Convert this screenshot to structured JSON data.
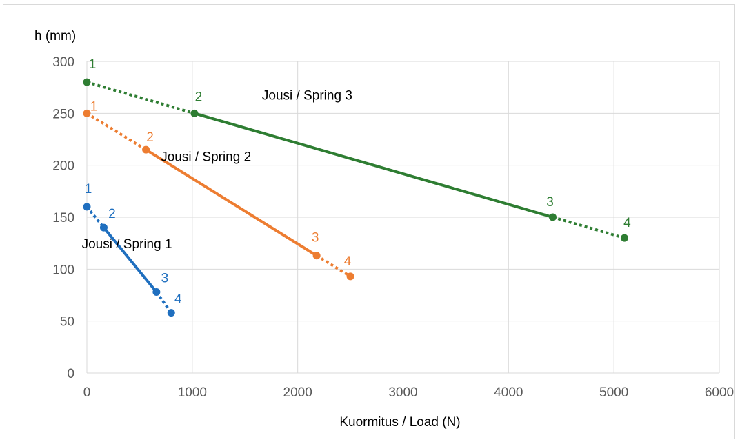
{
  "chart_data": {
    "type": "line",
    "title": "",
    "ylabel": "h (mm)",
    "xlabel": "Kuormitus / Load (N)",
    "xlim": [
      0,
      6000
    ],
    "ylim": [
      0,
      300
    ],
    "xticks": [
      "0",
      "1000",
      "2000",
      "3000",
      "4000",
      "5000",
      "6000"
    ],
    "yticks": [
      "0",
      "50",
      "100",
      "150",
      "200",
      "250",
      "300"
    ],
    "grid": true,
    "series": [
      {
        "name": "Jousi / Spring 1",
        "color": "#1f6fbf",
        "points": [
          {
            "label": "1",
            "x": 0,
            "y": 160
          },
          {
            "label": "2",
            "x": 160,
            "y": 140
          },
          {
            "label": "3",
            "x": 660,
            "y": 78
          },
          {
            "label": "4",
            "x": 800,
            "y": 58
          }
        ],
        "dashed_segments": [
          0,
          2
        ],
        "label_offsets": [
          [
            2,
            -20
          ],
          [
            12,
            -14
          ],
          [
            12,
            -14
          ],
          [
            10,
            -14
          ]
        ],
        "name_pos": [
          380,
          120
        ]
      },
      {
        "name": "Jousi / Spring 2",
        "color": "#ed7d31",
        "points": [
          {
            "label": "1",
            "x": 0,
            "y": 250
          },
          {
            "label": "2",
            "x": 560,
            "y": 215
          },
          {
            "label": "3",
            "x": 2180,
            "y": 113
          },
          {
            "label": "4",
            "x": 2500,
            "y": 93
          }
        ],
        "dashed_segments": [
          0,
          2
        ],
        "label_offsets": [
          [
            10,
            -4
          ],
          [
            6,
            -12
          ],
          [
            -2,
            -20
          ],
          [
            -4,
            -16
          ]
        ],
        "name_pos": [
          1130,
          204
        ]
      },
      {
        "name": "Jousi / Spring 3",
        "color": "#2e7d32",
        "points": [
          {
            "label": "1",
            "x": 0,
            "y": 280
          },
          {
            "label": "2",
            "x": 1020,
            "y": 250
          },
          {
            "label": "3",
            "x": 4420,
            "y": 150
          },
          {
            "label": "4",
            "x": 5100,
            "y": 130
          }
        ],
        "dashed_segments": [
          0,
          2
        ],
        "label_offsets": [
          [
            8,
            -20
          ],
          [
            6,
            -18
          ],
          [
            -4,
            -16
          ],
          [
            4,
            -16
          ]
        ],
        "name_pos": [
          2090,
          263
        ]
      }
    ]
  }
}
